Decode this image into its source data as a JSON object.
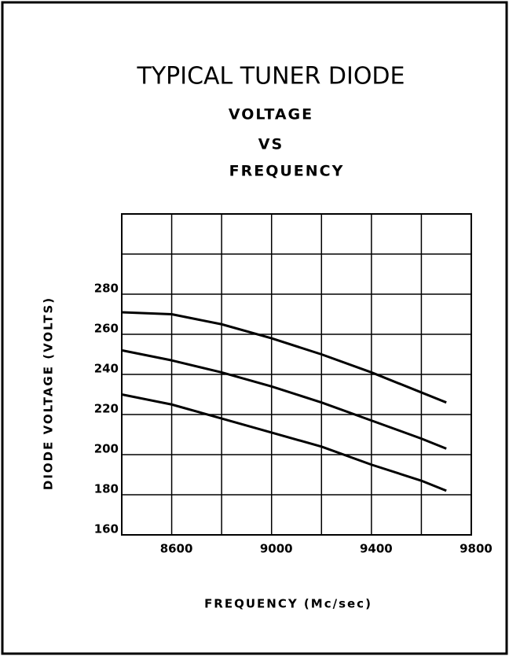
{
  "chart_data": {
    "type": "line",
    "title": "TYPICAL TUNER DIODE",
    "subtitle": [
      "VOLTAGE",
      "VS",
      "FREQUENCY"
    ],
    "x_label": "FREQUENCY (Mc/sec)",
    "y_label": "DIODE VOLTAGE (VOLTS)",
    "x": [
      8400,
      8600,
      8800,
      9000,
      9200,
      9400,
      9600,
      9700
    ],
    "series": [
      {
        "color": "#000000",
        "values": [
          271,
          270,
          265,
          258,
          250,
          241,
          231,
          226
        ]
      },
      {
        "color": "#000000",
        "values": [
          252,
          247,
          241,
          234,
          226,
          217,
          208,
          203
        ]
      },
      {
        "color": "#000000",
        "values": [
          230,
          225,
          218,
          211,
          204,
          195,
          187,
          182
        ]
      }
    ],
    "xlim": [
      8400,
      9800
    ],
    "ylim": [
      160,
      320
    ],
    "xticks": [
      8600,
      9000,
      9400,
      9800
    ],
    "yticks": [
      160,
      180,
      200,
      220,
      240,
      260,
      280
    ],
    "xgrid": [
      8400,
      8600,
      8800,
      9000,
      9200,
      9400,
      9600,
      9800
    ],
    "ygrid": [
      160,
      180,
      200,
      220,
      240,
      260,
      280,
      300,
      320
    ],
    "grid": true
  }
}
